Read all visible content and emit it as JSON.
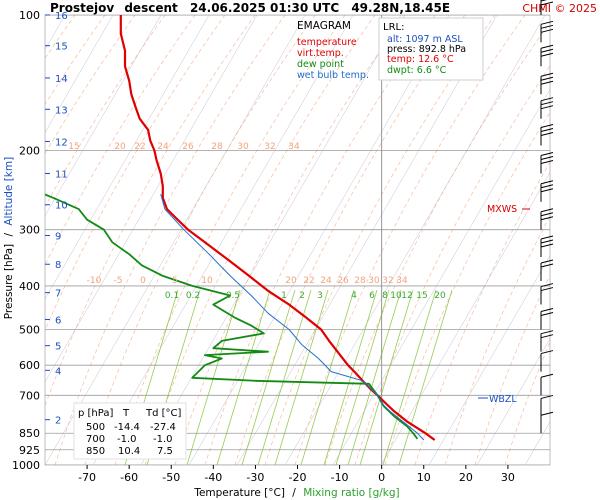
{
  "header": {
    "station": "Prostejov",
    "mode": "descent",
    "datetime": "24.06.2025 01:30 UTC",
    "coords": "49.28N,18.45E",
    "copyright": "CHMI © 2025"
  },
  "legend": {
    "title": "EMAGRAM",
    "items": [
      {
        "label": "temperature",
        "color": "#e00000"
      },
      {
        "label": "virt.temp.",
        "color": "#e00000"
      },
      {
        "label": "dew point",
        "color": "#138a13"
      },
      {
        "label": "wet bulb temp.",
        "color": "#1f6fd0"
      }
    ]
  },
  "lrl_box": {
    "title": "LRL:",
    "alt": "alt: 1097 m ASL",
    "press": "press: 892.8 hPa",
    "temp": "temp: 12.6 °C",
    "dwpt": "dwpt: 6.6 °C"
  },
  "table": {
    "headers": [
      "p [hPa]",
      "T",
      "Td [°C]"
    ],
    "rows": [
      [
        "500",
        "-14.4",
        "-27.4"
      ],
      [
        "700",
        "-1.0",
        "-1.0"
      ],
      [
        "850",
        "10.4",
        "7.5"
      ]
    ]
  },
  "markers": {
    "mxws": "MXWS",
    "wbzl": "WBZL"
  },
  "axes": {
    "x_label_temp": "Temperature [°C]",
    "x_label_sep": "/",
    "x_label_mix": "Mixing ratio [g/kg]",
    "y_label_p": "Pressure [hPa]",
    "y_label_sep": "/",
    "y_label_alt": "Altitude [km]"
  },
  "colors": {
    "temperature": "#e00000",
    "dewpoint": "#138a13",
    "wetbulb": "#1f6fd0",
    "dry_adiabat": "#9a9ab0",
    "moist_adiabat": "#f2a37c",
    "mixing_ratio": "#8cc63f",
    "altitude": "#1b4fc2",
    "isobar": "#9c9c9c",
    "mxws": "#d40000"
  },
  "chart_data": {
    "type": "line",
    "title": "Prostejov descent 24.06.2025 01:30 UTC 49.28N,18.45E",
    "xlabel": "Temperature [°C] / Mixing ratio [g/kg]",
    "ylabel": "Pressure [hPa] / Altitude [km]",
    "xlim": [
      -80,
      40
    ],
    "ylim": [
      1000,
      100
    ],
    "y_scale": "log",
    "x_ticks": [
      -70,
      -60,
      -50,
      -40,
      -30,
      -20,
      -10,
      0,
      10,
      20,
      30
    ],
    "y_ticks": [
      1000,
      925,
      850,
      700,
      600,
      500,
      400,
      300,
      200,
      100
    ],
    "altitude_ticks_km": [
      2,
      4,
      5,
      6,
      7,
      8,
      9,
      10,
      11,
      12,
      13,
      14,
      15,
      16
    ],
    "altitude_levels_hpa": [
      [
        2,
        793
      ],
      [
        4,
        616
      ],
      [
        5,
        543
      ],
      [
        6,
        475
      ],
      [
        7,
        414
      ],
      [
        8,
        358
      ],
      [
        9,
        309
      ],
      [
        10,
        264
      ],
      [
        11,
        225
      ],
      [
        12,
        191
      ],
      [
        13,
        162
      ],
      [
        14,
        138
      ],
      [
        15,
        117
      ],
      [
        16,
        100
      ]
    ],
    "mixing_ratio_labels": [
      "0.1",
      "0.2",
      "0.5",
      "1",
      "2",
      "3",
      "4",
      "6",
      "8",
      "10",
      "12",
      "15",
      "20",
      "25"
    ],
    "moist_adiabat_labels_200": [
      "15",
      "20",
      "22",
      "24",
      "26",
      "28",
      "30",
      "32",
      "34"
    ],
    "moist_adiabat_labels_400": [
      "-10",
      "-5",
      "0",
      "5",
      "10",
      "20",
      "22",
      "24",
      "26",
      "28",
      "30",
      "32",
      "34"
    ],
    "grid": true,
    "series": [
      {
        "name": "temperature",
        "points": [
          [
            880,
            12.6
          ],
          [
            850,
            10.4
          ],
          [
            800,
            6.0
          ],
          [
            760,
            3.0
          ],
          [
            730,
            1.0
          ],
          [
            700,
            -1.0
          ],
          [
            680,
            -2.5
          ],
          [
            650,
            -4.5
          ],
          [
            620,
            -6.5
          ],
          [
            600,
            -8.0
          ],
          [
            560,
            -10.5
          ],
          [
            530,
            -12.5
          ],
          [
            500,
            -14.4
          ],
          [
            470,
            -18.0
          ],
          [
            440,
            -22.0
          ],
          [
            410,
            -27.0
          ],
          [
            380,
            -31.5
          ],
          [
            350,
            -36.5
          ],
          [
            320,
            -42.0
          ],
          [
            300,
            -46.0
          ],
          [
            285,
            -48.5
          ],
          [
            270,
            -51.0
          ],
          [
            255,
            -52.0
          ],
          [
            240,
            -52.0
          ],
          [
            225,
            -52.5
          ],
          [
            210,
            -53.5
          ],
          [
            200,
            -54.0
          ],
          [
            190,
            -55.0
          ],
          [
            180,
            -55.5
          ],
          [
            170,
            -57.5
          ],
          [
            160,
            -58.5
          ],
          [
            150,
            -59.5
          ],
          [
            140,
            -60.0
          ],
          [
            130,
            -61.0
          ],
          [
            120,
            -61.0
          ],
          [
            110,
            -62.0
          ],
          [
            100,
            -62.0
          ]
        ]
      },
      {
        "name": "dew point",
        "points": [
          [
            875,
            8.5
          ],
          [
            850,
            7.5
          ],
          [
            820,
            6.0
          ],
          [
            780,
            3.0
          ],
          [
            740,
            0.5
          ],
          [
            700,
            -1.0
          ],
          [
            660,
            -3.0
          ],
          [
            650,
            -30.0
          ],
          [
            640,
            -45.0
          ],
          [
            600,
            -42.0
          ],
          [
            580,
            -38.0
          ],
          [
            570,
            -42.0
          ],
          [
            560,
            -27.0
          ],
          [
            550,
            -40.0
          ],
          [
            530,
            -38.0
          ],
          [
            510,
            -28.0
          ],
          [
            490,
            -31.0
          ],
          [
            470,
            -35.0
          ],
          [
            440,
            -40.0
          ],
          [
            420,
            -36.0
          ],
          [
            400,
            -45.0
          ],
          [
            380,
            -52.0
          ],
          [
            360,
            -57.0
          ],
          [
            340,
            -60.0
          ],
          [
            320,
            -64.0
          ],
          [
            300,
            -66.0
          ],
          [
            285,
            -70.0
          ],
          [
            270,
            -72.0
          ],
          [
            255,
            -78.0
          ],
          [
            240,
            -85.0
          ],
          [
            225,
            -90.0
          ]
        ]
      },
      {
        "name": "wet bulb temp.",
        "points": [
          [
            880,
            10.0
          ],
          [
            850,
            8.5
          ],
          [
            800,
            5.0
          ],
          [
            760,
            2.0
          ],
          [
            730,
            0.0
          ],
          [
            700,
            -1.0
          ],
          [
            650,
            -4.5
          ],
          [
            620,
            -12.0
          ],
          [
            580,
            -15.0
          ],
          [
            540,
            -19.0
          ],
          [
            500,
            -22.0
          ],
          [
            460,
            -27.0
          ],
          [
            420,
            -31.0
          ],
          [
            380,
            -36.0
          ],
          [
            340,
            -41.0
          ],
          [
            300,
            -47.0
          ],
          [
            270,
            -51.5
          ],
          [
            250,
            -52.5
          ]
        ]
      }
    ],
    "hodograph_note": "wind barbs shown along right side"
  }
}
